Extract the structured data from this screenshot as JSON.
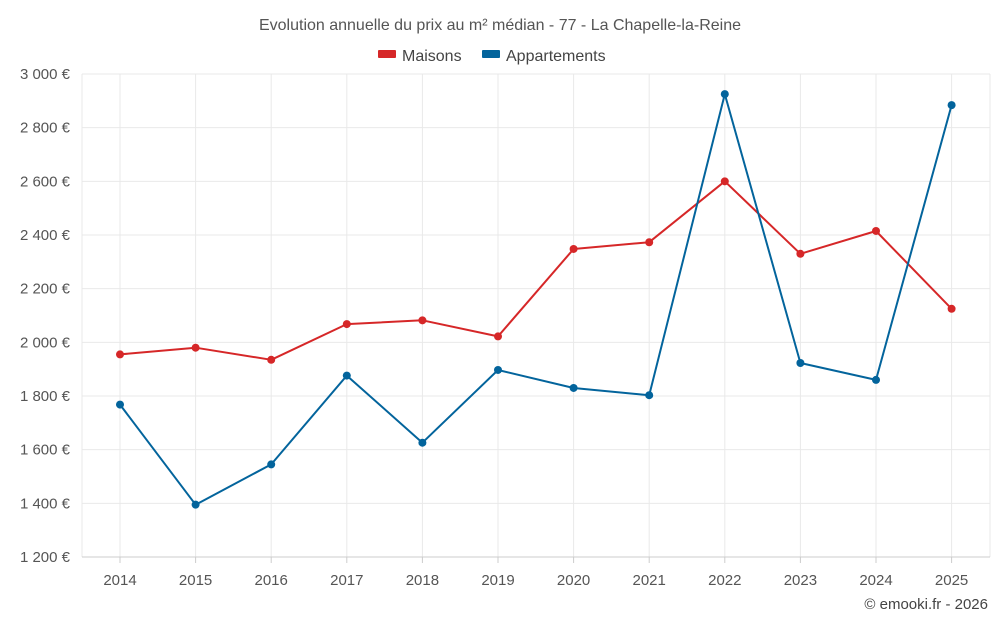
{
  "chart_data": {
    "type": "line",
    "title": "Evolution annuelle du prix au m² médian - 77 - La Chapelle-la-Reine",
    "categories": [
      "2014",
      "2015",
      "2016",
      "2017",
      "2018",
      "2019",
      "2020",
      "2021",
      "2022",
      "2023",
      "2024",
      "2025"
    ],
    "series": [
      {
        "name": "Maisons",
        "color": "#d62728",
        "values": [
          1955,
          1980,
          1935,
          2068,
          2082,
          2022,
          2348,
          2373,
          2600,
          2330,
          2415,
          2125
        ]
      },
      {
        "name": "Appartements",
        "color": "#03649c",
        "values": [
          1768,
          1395,
          1545,
          1876,
          1626,
          1897,
          1830,
          1803,
          2925,
          1923,
          1860,
          2884
        ]
      }
    ],
    "yticks": [
      "3 000 €",
      "2 800 €",
      "2 600 €",
      "2 400 €",
      "2 200 €",
      "2 000 €",
      "1 800 €",
      "1 600 €",
      "1 400 €",
      "1 200 €"
    ],
    "ytick_values": [
      3000,
      2800,
      2600,
      2400,
      2200,
      2000,
      1800,
      1600,
      1400,
      1200
    ],
    "ylim": [
      1200,
      3000
    ],
    "xlabel": "",
    "ylabel": "",
    "grid": true,
    "legend_position": "top-center"
  },
  "footer": {
    "credit": "© emooki.fr - 2026"
  }
}
